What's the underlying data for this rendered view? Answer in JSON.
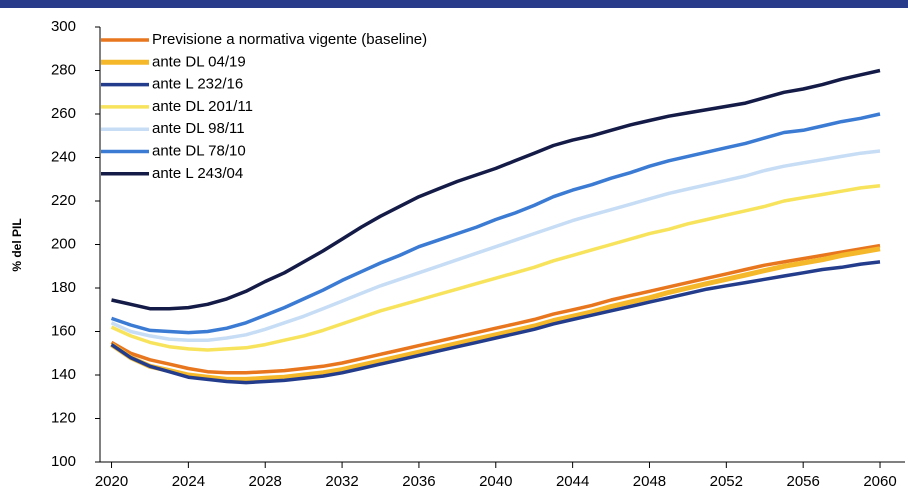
{
  "chart_data": {
    "type": "line",
    "ylabel": "% del PIL",
    "x": [
      2020,
      2021,
      2022,
      2023,
      2024,
      2025,
      2026,
      2027,
      2028,
      2029,
      2030,
      2031,
      2032,
      2033,
      2034,
      2035,
      2036,
      2037,
      2038,
      2039,
      2040,
      2041,
      2042,
      2043,
      2044,
      2045,
      2046,
      2047,
      2048,
      2049,
      2050,
      2051,
      2052,
      2053,
      2054,
      2055,
      2056,
      2057,
      2058,
      2059,
      2060
    ],
    "xlim": [
      2019.4,
      2061.3
    ],
    "xticks": [
      2020,
      2024,
      2028,
      2032,
      2036,
      2040,
      2044,
      2048,
      2052,
      2056,
      2060
    ],
    "ylim": [
      100,
      300
    ],
    "yticks": [
      100,
      120,
      140,
      160,
      180,
      200,
      220,
      240,
      260,
      280,
      300
    ],
    "legend": "upper left",
    "series": [
      {
        "name": "Previsione a normativa vigente (baseline)",
        "color": "#e8761e",
        "values": [
          155,
          150,
          147,
          145,
          143,
          141.5,
          141,
          141,
          141.5,
          142,
          143,
          144,
          145.5,
          147.5,
          149.5,
          151.5,
          153.5,
          155.5,
          157.5,
          159.5,
          161.5,
          163.5,
          165.5,
          168,
          170,
          172,
          174.5,
          176.5,
          178.5,
          180.5,
          182.5,
          184.5,
          186.5,
          188.5,
          190.5,
          192,
          193.5,
          195,
          196.5,
          198,
          199.5
        ]
      },
      {
        "name": "ante DL 04/19",
        "color": "#f5b82a",
        "values": [
          154,
          148,
          144,
          142,
          140,
          139,
          138,
          138,
          138.5,
          139,
          140,
          141,
          142.5,
          144.5,
          146.5,
          148.5,
          150.5,
          152.5,
          154.5,
          156.5,
          158.5,
          160.5,
          162.5,
          165,
          167,
          169,
          171.5,
          173.5,
          175.5,
          178,
          180,
          182,
          184,
          186,
          188,
          190,
          191.5,
          193,
          195,
          196.5,
          198
        ]
      },
      {
        "name": "ante L 232/16",
        "color": "#233d8c",
        "values": [
          154,
          148,
          144,
          141.5,
          139,
          138,
          137,
          136.5,
          137,
          137.5,
          138.5,
          139.5,
          141,
          143,
          145,
          147,
          149,
          151,
          153,
          155,
          157,
          159,
          161,
          163.5,
          165.5,
          167.5,
          169.5,
          171.5,
          173.5,
          175.5,
          177.5,
          179.5,
          181,
          182.5,
          184,
          185.5,
          187,
          188.5,
          189.5,
          191,
          192
        ]
      },
      {
        "name": "ante DL 201/11",
        "color": "#f8e35c",
        "values": [
          162,
          158,
          155,
          153,
          152,
          151.5,
          152,
          152.5,
          154,
          156,
          158,
          160.5,
          163.5,
          166.5,
          169.5,
          172,
          174.5,
          177,
          179.5,
          182,
          184.5,
          187,
          189.5,
          192.5,
          195,
          197.5,
          200,
          202.5,
          205,
          207,
          209.5,
          211.5,
          213.5,
          215.5,
          217.5,
          220,
          221.5,
          223,
          224.5,
          226,
          227
        ]
      },
      {
        "name": "ante DL 98/11",
        "color": "#c6ddf5",
        "values": [
          164,
          160,
          158,
          156.5,
          156,
          156,
          157,
          158.5,
          161,
          164,
          167,
          170.5,
          174,
          177.5,
          181,
          184,
          187,
          190,
          193,
          196,
          199,
          202,
          205,
          208,
          211,
          213.5,
          216,
          218.5,
          221,
          223.5,
          225.5,
          227.5,
          229.5,
          231.5,
          234,
          236,
          237.5,
          239,
          240.5,
          242,
          243
        ]
      },
      {
        "name": "ante DL 78/10",
        "color": "#3b7bd4",
        "values": [
          166,
          163,
          160.5,
          160,
          159.5,
          160,
          161.5,
          164,
          167.5,
          171,
          175,
          179,
          183.5,
          187.5,
          191.5,
          195,
          199,
          202,
          205,
          208,
          211.5,
          214.5,
          218,
          222,
          225,
          227.5,
          230.5,
          233,
          236,
          238.5,
          240.5,
          242.5,
          244.5,
          246.5,
          249,
          251.5,
          252.5,
          254.5,
          256.5,
          258,
          260
        ]
      },
      {
        "name": "ante L 243/04",
        "color": "#141b47",
        "values": [
          174.5,
          172.5,
          170.5,
          170.5,
          171,
          172.5,
          175,
          178.5,
          183,
          187,
          192,
          197,
          202.5,
          208,
          213,
          217.5,
          222,
          225.5,
          229,
          232,
          235,
          238.5,
          242,
          245.5,
          248,
          250,
          252.5,
          255,
          257,
          259,
          260.5,
          262,
          263.5,
          265,
          267.5,
          270,
          271.5,
          273.5,
          276,
          278,
          280
        ]
      }
    ]
  }
}
